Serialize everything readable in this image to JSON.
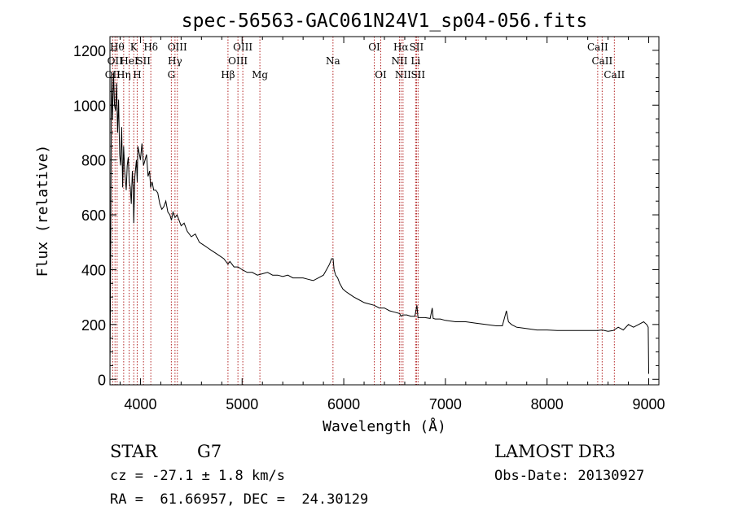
{
  "chart_data": {
    "type": "line",
    "title": "spec-56563-GAC061N24V1_sp04-056.fits",
    "xlabel": "Wavelength (Å)",
    "ylabel": "Flux (relative)",
    "xlim": [
      3700,
      9100
    ],
    "ylim": [
      -20,
      1250
    ],
    "xticks": [
      4000,
      5000,
      6000,
      7000,
      8000,
      9000
    ],
    "xtick_labels": [
      "4000",
      "5000",
      "6000",
      "7000",
      "8000",
      "9000"
    ],
    "yticks": [
      0,
      200,
      400,
      600,
      800,
      1000,
      1200
    ],
    "ytick_labels": [
      "0",
      "200",
      "400",
      "600",
      "800",
      "1000",
      "1200"
    ],
    "series": [
      {
        "name": "spectrum",
        "x": [
          3700,
          3705,
          3715,
          3725,
          3735,
          3745,
          3755,
          3765,
          3775,
          3785,
          3795,
          3805,
          3815,
          3825,
          3835,
          3845,
          3860,
          3870,
          3880,
          3890,
          3900,
          3910,
          3920,
          3930,
          3934,
          3945,
          3960,
          3968,
          3975,
          3990,
          4000,
          4015,
          4030,
          4045,
          4060,
          4075,
          4090,
          4100,
          4115,
          4130,
          4150,
          4170,
          4190,
          4210,
          4230,
          4250,
          4270,
          4290,
          4305,
          4320,
          4340,
          4360,
          4380,
          4400,
          4430,
          4460,
          4500,
          4540,
          4580,
          4620,
          4660,
          4700,
          4740,
          4780,
          4820,
          4861,
          4880,
          4920,
          4960,
          5000,
          5050,
          5100,
          5150,
          5200,
          5250,
          5300,
          5350,
          5400,
          5450,
          5500,
          5550,
          5600,
          5650,
          5700,
          5750,
          5800,
          5830,
          5860,
          5880,
          5895,
          5905,
          5920,
          5940,
          5960,
          5990,
          6020,
          6060,
          6100,
          6150,
          6200,
          6250,
          6300,
          6350,
          6400,
          6450,
          6500,
          6550,
          6563,
          6580,
          6620,
          6660,
          6700,
          6720,
          6730,
          6750,
          6800,
          6850,
          6870,
          6880,
          6900,
          6950,
          7000,
          7100,
          7200,
          7300,
          7400,
          7500,
          7560,
          7600,
          7620,
          7650,
          7700,
          7800,
          7900,
          8000,
          8100,
          8200,
          8300,
          8400,
          8500,
          8540,
          8600,
          8650,
          8700,
          8750,
          8800,
          8850,
          8900,
          8950,
          8980,
          8995,
          9000
        ],
        "y": [
          0,
          300,
          1100,
          950,
          1120,
          1000,
          980,
          1080,
          900,
          1020,
          820,
          780,
          920,
          700,
          850,
          760,
          690,
          780,
          810,
          720,
          700,
          640,
          760,
          690,
          570,
          740,
          800,
          720,
          850,
          820,
          800,
          860,
          780,
          800,
          820,
          740,
          760,
          700,
          720,
          690,
          690,
          680,
          640,
          620,
          630,
          650,
          610,
          600,
          580,
          610,
          590,
          600,
          580,
          560,
          570,
          540,
          520,
          530,
          500,
          490,
          480,
          470,
          460,
          450,
          440,
          420,
          430,
          410,
          410,
          400,
          390,
          390,
          380,
          385,
          390,
          380,
          380,
          375,
          380,
          370,
          370,
          370,
          365,
          360,
          370,
          380,
          400,
          420,
          440,
          440,
          400,
          380,
          370,
          350,
          330,
          320,
          310,
          300,
          290,
          280,
          275,
          270,
          260,
          260,
          250,
          245,
          240,
          230,
          235,
          235,
          230,
          230,
          270,
          225,
          225,
          225,
          222,
          260,
          222,
          220,
          220,
          215,
          210,
          210,
          205,
          200,
          195,
          195,
          250,
          210,
          200,
          190,
          185,
          180,
          180,
          178,
          178,
          178,
          178,
          178,
          180,
          175,
          178,
          190,
          180,
          200,
          190,
          200,
          210,
          200,
          190,
          20
        ]
      }
    ],
    "lines": [
      {
        "x": 3727,
        "label": "OII",
        "row": 3
      },
      {
        "x": 3750,
        "label": "OII",
        "row": 2
      },
      {
        "x": 3771,
        "label": "Hθ",
        "row": 1
      },
      {
        "x": 3835,
        "label": "Hη",
        "row": 3
      },
      {
        "x": 3889,
        "label": "HeI",
        "row": 2
      },
      {
        "x": 3934,
        "label": "K",
        "row": 1
      },
      {
        "x": 3968,
        "label": "H",
        "row": 3
      },
      {
        "x": 4030,
        "label": "SII",
        "row": 2
      },
      {
        "x": 4102,
        "label": "Hδ",
        "row": 1
      },
      {
        "x": 4304,
        "label": "G",
        "row": 3
      },
      {
        "x": 4340,
        "label": "Hγ",
        "row": 2
      },
      {
        "x": 4363,
        "label": "OIII",
        "row": 1
      },
      {
        "x": 4861,
        "label": "Hβ",
        "row": 3
      },
      {
        "x": 4959,
        "label": "OIII",
        "row": 2
      },
      {
        "x": 5007,
        "label": "OIII",
        "row": 1
      },
      {
        "x": 5175,
        "label": "Mg",
        "row": 3
      },
      {
        "x": 5894,
        "label": "Na",
        "row": 2
      },
      {
        "x": 6300,
        "label": "OI",
        "row": 1
      },
      {
        "x": 6364,
        "label": "OI",
        "row": 3
      },
      {
        "x": 6548,
        "label": "NII",
        "row": 2
      },
      {
        "x": 6563,
        "label": "Hα",
        "row": 1
      },
      {
        "x": 6583,
        "label": "NII",
        "row": 3
      },
      {
        "x": 6707,
        "label": "Li",
        "row": 2
      },
      {
        "x": 6716,
        "label": "SII",
        "row": 1
      },
      {
        "x": 6731,
        "label": "SII",
        "row": 3
      },
      {
        "x": 8498,
        "label": "CaII",
        "row": 1
      },
      {
        "x": 8542,
        "label": "CaII",
        "row": 2
      },
      {
        "x": 8662,
        "label": "CaII",
        "row": 3
      }
    ],
    "line_color": "#b22222"
  },
  "info": {
    "object_class": "STAR",
    "subclass": "G7",
    "survey": "LAMOST DR3",
    "cz": "cz = -27.1 ± 1.8 km/s",
    "obs_date": "Obs-Date: 20130927",
    "coords": "RA =  61.66957, DEC =  24.30129"
  }
}
